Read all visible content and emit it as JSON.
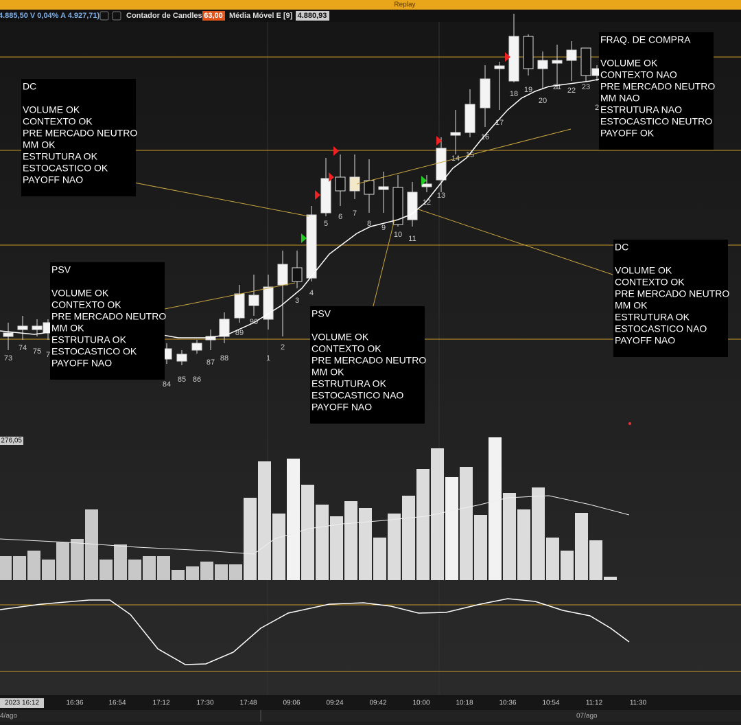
{
  "header": {
    "title": "Replay",
    "quote": "4.885,50 V 0,04% A 4.927,71)",
    "indicators": [
      {
        "label": "Contador de Candles",
        "value": "63,00"
      },
      {
        "label": "Média Móvel E [9]",
        "value": "4.880,93"
      }
    ]
  },
  "annotations": [
    {
      "title": "DC",
      "lines": [
        "VOLUME OK",
        "CONTEXTO OK",
        "PRE MERCADO NEUTRO",
        "MM OK",
        "ESTRUTURA OK",
        "ESTOCASTICO OK",
        "PAYOFF NAO"
      ]
    },
    {
      "title": "FRAQ. DE COMPRA",
      "lines": [
        "VOLUME OK",
        "CONTEXTO NAO",
        "PRE MERCADO NEUTRO",
        "MM NAO",
        "ESTRUTURA NAO",
        "ESTOCASTICO NEUTRO",
        "PAYOFF OK"
      ]
    },
    {
      "title": "DC",
      "lines": [
        "VOLUME OK",
        "CONTEXTO OK",
        "PRE MERCADO NEUTRO",
        "MM OK",
        "ESTRUTURA OK",
        "ESTOCASTICO NAO",
        "PAYOFF NAO"
      ]
    },
    {
      "title": "PSV",
      "lines": [
        "VOLUME OK",
        "CONTEXTO OK",
        "PRE MERCADO NEUTRO",
        "MM OK",
        "ESTRUTURA OK",
        "ESTOCASTICO OK",
        "PAYOFF NAO"
      ]
    },
    {
      "title": "PSV",
      "lines": [
        "VOLUME OK",
        "CONTEXTO OK",
        "PRE MERCADO NEUTRO",
        "MM OK",
        "ESTRUTURA OK",
        "ESTOCASTICO NAO",
        "PAYOFF NAO"
      ]
    }
  ],
  "candle_labels": [
    "73",
    "74",
    "75",
    "7",
    "84",
    "85",
    "86",
    "87",
    "88",
    "89",
    "90",
    "1",
    "2",
    "3",
    "4",
    "5",
    "6",
    "7",
    "8",
    "9",
    "10",
    "11",
    "12",
    "13",
    "14",
    "15",
    "16",
    "17",
    "18",
    "19",
    "20",
    "21",
    "22",
    "23",
    "2"
  ],
  "volume_label": "276,05",
  "time_axis": [
    "2023 16:12",
    "16:36",
    "16:54",
    "17:12",
    "17:30",
    "17:48",
    "09:06",
    "09:24",
    "09:42",
    "10:00",
    "10:18",
    "10:36",
    "10:54",
    "11:12",
    "11:30"
  ],
  "dates": [
    "4/ago",
    "07/ago"
  ]
}
